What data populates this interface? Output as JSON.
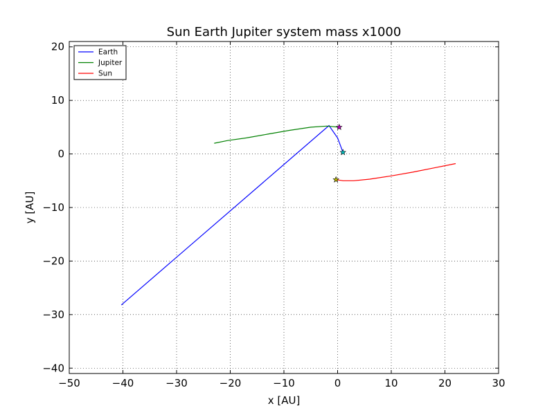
{
  "chart_data": {
    "type": "line",
    "title": "Sun Earth Jupiter system mass x1000",
    "xlabel": "x [AU]",
    "ylabel": "y [AU]",
    "xlim": [
      -50,
      30
    ],
    "ylim": [
      -41,
      21
    ],
    "xticks": [
      -50,
      -40,
      -30,
      -20,
      -10,
      0,
      10,
      20,
      30
    ],
    "yticks": [
      -40,
      -30,
      -20,
      -10,
      0,
      10,
      20
    ],
    "grid": true,
    "legend_position": "top-left",
    "series": [
      {
        "name": "Earth",
        "color": "#0000ff",
        "points": [
          [
            1.0,
            0.3
          ],
          [
            0.0,
            3.0
          ],
          [
            -1.6,
            5.3
          ],
          [
            -40.3,
            -28.2
          ]
        ],
        "start_marker": {
          "x": 1.0,
          "y": 0.3,
          "color": "#00bfbf"
        }
      },
      {
        "name": "Jupiter",
        "color": "#008000",
        "points": [
          [
            0.3,
            5.0
          ],
          [
            -2.0,
            5.2
          ],
          [
            -5.0,
            5.0
          ],
          [
            -9.0,
            4.4
          ],
          [
            -13.0,
            3.7
          ],
          [
            -17.0,
            3.0
          ],
          [
            -20.5,
            2.5
          ],
          [
            -23.0,
            2.0
          ]
        ],
        "start_marker": {
          "x": 0.3,
          "y": 5.0,
          "color": "#bf00bf"
        }
      },
      {
        "name": "Sun",
        "color": "#ff0000",
        "points": [
          [
            -0.3,
            -4.8
          ],
          [
            1.0,
            -5.0
          ],
          [
            3.0,
            -5.0
          ],
          [
            6.0,
            -4.7
          ],
          [
            10.0,
            -4.1
          ],
          [
            14.0,
            -3.4
          ],
          [
            18.0,
            -2.6
          ],
          [
            22.0,
            -1.8
          ]
        ],
        "start_marker": {
          "x": -0.3,
          "y": -4.8,
          "color": "#bfbf00"
        }
      }
    ]
  }
}
